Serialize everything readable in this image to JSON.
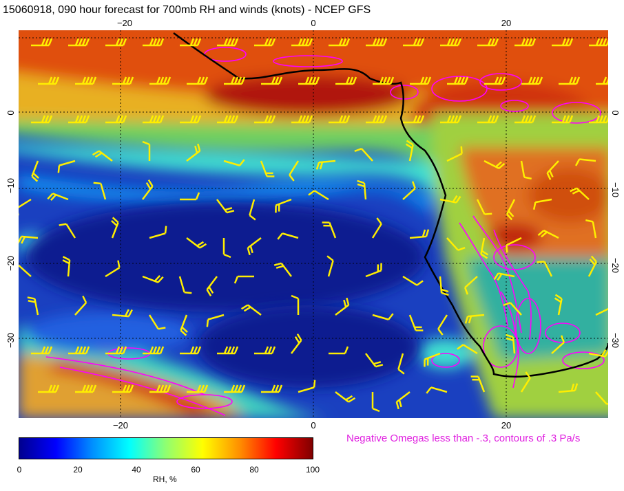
{
  "title": "15060918, 090 hour forecast for 700mb RH and winds (knots) - NCEP GFS",
  "map": {
    "lon_min": -30.5,
    "lon_max": 30.5,
    "lat_min": -40,
    "lat_max": 10,
    "lon_ticks_top": [
      "−20",
      "0",
      "20"
    ],
    "lon_ticks_bottom": [
      "−20",
      "0",
      "20"
    ],
    "lat_ticks_left": [
      "0",
      "−10",
      "−20",
      "−30"
    ],
    "lat_ticks_right": [
      "0",
      "−10",
      "−20",
      "−30"
    ],
    "gridlines": true,
    "colors": {
      "coastline": "#000000",
      "wind_barbs": "#ffff00",
      "omega_contours": "#ff00ff",
      "grid": "#000000"
    }
  },
  "omega_note": "Negative Omegas less than -.3, contours of .3 Pa/s",
  "colorbar": {
    "ticks": [
      "0",
      "20",
      "40",
      "60",
      "80",
      "100"
    ],
    "label": "RH, %",
    "stops": [
      "#00008f",
      "#0000ff",
      "#0090ff",
      "#00ffff",
      "#90ff70",
      "#ffff00",
      "#ff9000",
      "#ff0000",
      "#800000"
    ]
  }
}
